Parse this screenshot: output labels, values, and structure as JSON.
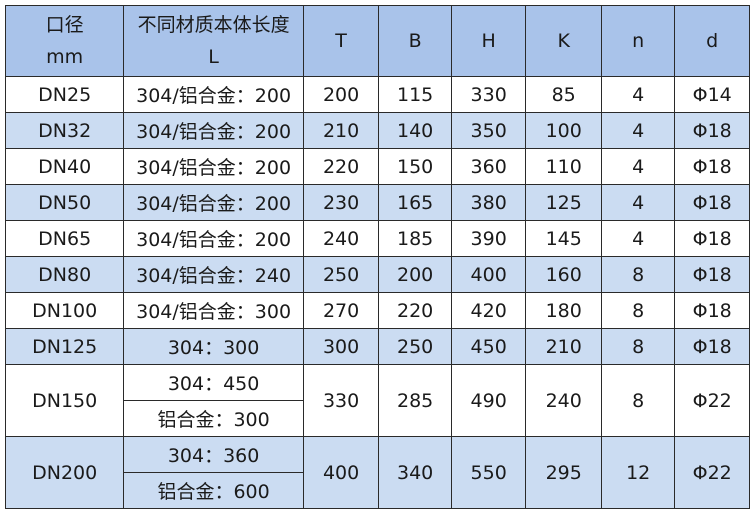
{
  "headers": [
    {
      "line1": "口径",
      "line2": "mm"
    },
    {
      "line1": "不同材质本体长度",
      "line2": "L"
    },
    {
      "line1": "T"
    },
    {
      "line1": "B"
    },
    {
      "line1": "H"
    },
    {
      "line1": "K"
    },
    {
      "line1": "n"
    },
    {
      "line1": "d"
    }
  ],
  "rows": [
    {
      "dn": "DN25",
      "l": "304/铝合金：200",
      "t": "200",
      "b": "115",
      "h": "330",
      "k": "85",
      "n": "4",
      "d": "Φ14"
    },
    {
      "dn": "DN32",
      "l": "304/铝合金：200",
      "t": "210",
      "b": "140",
      "h": "350",
      "k": "100",
      "n": "4",
      "d": "Φ18"
    },
    {
      "dn": "DN40",
      "l": "304/铝合金：200",
      "t": "220",
      "b": "150",
      "h": "360",
      "k": "110",
      "n": "4",
      "d": "Φ18"
    },
    {
      "dn": "DN50",
      "l": "304/铝合金：200",
      "t": "230",
      "b": "165",
      "h": "380",
      "k": "125",
      "n": "4",
      "d": "Φ18"
    },
    {
      "dn": "DN65",
      "l": "304/铝合金：200",
      "t": "240",
      "b": "185",
      "h": "390",
      "k": "145",
      "n": "4",
      "d": "Φ18"
    },
    {
      "dn": "DN80",
      "l": "304/铝合金：240",
      "t": "250",
      "b": "200",
      "h": "400",
      "k": "160",
      "n": "8",
      "d": "Φ18"
    },
    {
      "dn": "DN100",
      "l": "304/铝合金：300",
      "t": "270",
      "b": "220",
      "h": "420",
      "k": "180",
      "n": "8",
      "d": "Φ18"
    },
    {
      "dn": "DN125",
      "l": "304：300",
      "t": "300",
      "b": "250",
      "h": "450",
      "k": "210",
      "n": "8",
      "d": "Φ18"
    },
    {
      "dn": "DN150",
      "l": "304：450",
      "l2": "铝合金：300",
      "t": "330",
      "b": "285",
      "h": "490",
      "k": "240",
      "n": "8",
      "d": "Φ22"
    },
    {
      "dn": "DN200",
      "l": "304：360",
      "l2": "铝合金：600",
      "t": "400",
      "b": "340",
      "h": "550",
      "k": "295",
      "n": "12",
      "d": "Φ22"
    }
  ],
  "colors": {
    "header": "#a9c3ea",
    "alt_row": "#cbdcf2"
  }
}
